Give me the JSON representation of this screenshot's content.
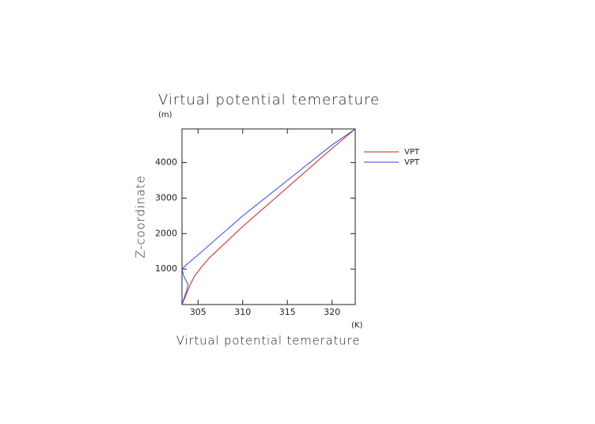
{
  "chart_data": {
    "type": "line",
    "title": "Virtual potential temerature",
    "y_unit": "(m)",
    "x_unit": "(K)",
    "x_label": "Virtual potential temerature",
    "y_label": "Z-coordinate",
    "xlim": [
      303.2,
      322.6
    ],
    "ylim": [
      0,
      4950
    ],
    "xticks": [
      305,
      310,
      315,
      320
    ],
    "yticks": [
      1000,
      2000,
      3000,
      4000
    ],
    "series": [
      {
        "name": "VPT",
        "color": "#cc2222",
        "x": [
          303.2,
          303.7,
          304.2,
          304.6,
          305.2,
          306.2,
          310,
          315,
          320,
          322.6
        ],
        "values": [
          0,
          300,
          600,
          800,
          1000,
          1300,
          2200,
          3300,
          4400,
          4950
        ]
      },
      {
        "name": "VPT",
        "color": "#3344ee",
        "x": [
          303.2,
          303.6,
          303.9,
          303.4,
          303.2,
          303.6,
          305,
          310,
          315,
          320,
          322.6
        ],
        "values": [
          0,
          300,
          550,
          800,
          1000,
          1100,
          1400,
          2500,
          3500,
          4500,
          4950
        ]
      }
    ]
  }
}
